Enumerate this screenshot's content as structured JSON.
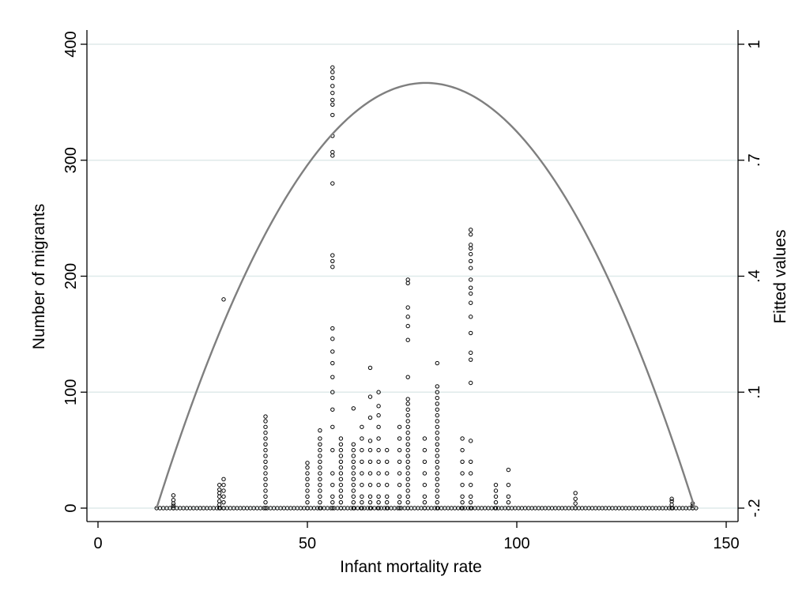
{
  "chart_data": {
    "type": "scatter",
    "title": "",
    "xlabel": "Infant mortality rate",
    "ylabel": "Number of migrants",
    "y2label": "Fitted values",
    "xlim": [
      0,
      150
    ],
    "ylim": [
      0,
      400
    ],
    "y2lim": [
      -0.2,
      1
    ],
    "x_ticks": [
      "0",
      "50",
      "100",
      "150"
    ],
    "y_ticks": [
      "0",
      "100",
      "200",
      "300",
      "400"
    ],
    "y2_ticks": [
      "-.2",
      ".1",
      ".4",
      ".7",
      "1"
    ],
    "grid": "horizontal",
    "colors": {
      "points": "#000000",
      "fit_line": "#7f7f7f",
      "grid": "#dfeaea"
    },
    "series": [
      {
        "kind": "points",
        "columns": [
          {
            "x": 18,
            "y": [
              0,
              2,
              4,
              7,
              11
            ]
          },
          {
            "x": 29,
            "y": [
              0,
              3,
              6,
              10,
              13,
              16,
              20
            ]
          },
          {
            "x": 30,
            "y": [
              0,
              5,
              10,
              15,
              20,
              25
            ]
          },
          {
            "x": 40,
            "y": [
              0,
              5,
              10,
              15,
              20,
              25,
              30,
              35,
              40,
              45,
              50,
              55,
              60,
              65,
              70,
              75,
              79
            ]
          },
          {
            "x": 50,
            "y": [
              0,
              5,
              10,
              15,
              20,
              25,
              30,
              35,
              39
            ]
          },
          {
            "x": 53,
            "y": [
              0,
              5,
              10,
              15,
              20,
              25,
              30,
              35,
              40,
              45,
              50,
              55,
              60,
              67
            ]
          },
          {
            "x": 56,
            "y": [
              0,
              5,
              10,
              20,
              30,
              50,
              70,
              85,
              100,
              113,
              125,
              135,
              146,
              155,
              208,
              213,
              218,
              280,
              304,
              307,
              321,
              339,
              348,
              352,
              358,
              364,
              371,
              376,
              380
            ]
          },
          {
            "x": 58,
            "y": [
              0,
              5,
              10,
              15,
              20,
              25,
              30,
              35,
              40,
              45,
              50,
              55,
              60
            ]
          },
          {
            "x": 61,
            "y": [
              0,
              5,
              10,
              15,
              20,
              25,
              30,
              35,
              40,
              45,
              50,
              55,
              86
            ]
          },
          {
            "x": 63,
            "y": [
              0,
              5,
              10,
              20,
              30,
              40,
              50,
              60,
              70
            ]
          },
          {
            "x": 65,
            "y": [
              0,
              5,
              10,
              20,
              30,
              40,
              50,
              58,
              78,
              96,
              121
            ]
          },
          {
            "x": 67,
            "y": [
              0,
              5,
              10,
              20,
              30,
              40,
              50,
              60,
              70,
              80,
              88,
              100
            ]
          },
          {
            "x": 69,
            "y": [
              0,
              5,
              10,
              20,
              30,
              40,
              50
            ]
          },
          {
            "x": 72,
            "y": [
              0,
              5,
              10,
              20,
              30,
              40,
              50,
              60,
              70
            ]
          },
          {
            "x": 74,
            "y": [
              0,
              5,
              10,
              15,
              20,
              25,
              30,
              35,
              40,
              45,
              50,
              55,
              60,
              65,
              70,
              75,
              80,
              85,
              90,
              94,
              113,
              145,
              157,
              165,
              173,
              194,
              197
            ]
          },
          {
            "x": 78,
            "y": [
              0,
              5,
              10,
              20,
              30,
              40,
              50,
              60
            ]
          },
          {
            "x": 81,
            "y": [
              0,
              5,
              10,
              15,
              20,
              25,
              30,
              35,
              40,
              45,
              50,
              55,
              60,
              65,
              70,
              75,
              80,
              85,
              90,
              95,
              100,
              105,
              125
            ]
          },
          {
            "x": 87,
            "y": [
              0,
              5,
              10,
              20,
              30,
              40,
              50,
              60
            ]
          },
          {
            "x": 89,
            "y": [
              0,
              5,
              10,
              20,
              30,
              40,
              58,
              108,
              128,
              134,
              151,
              165,
              177,
              185,
              190,
              197,
              207,
              213,
              219,
              224,
              227,
              236,
              240
            ]
          },
          {
            "x": 95,
            "y": [
              0,
              5,
              10,
              15,
              20
            ]
          },
          {
            "x": 98,
            "y": [
              0,
              5,
              10,
              20,
              33
            ]
          },
          {
            "x": 114,
            "y": [
              0,
              4,
              8,
              13
            ]
          },
          {
            "x": 137,
            "y": [
              0,
              3,
              6,
              8
            ]
          },
          {
            "x": 142,
            "y": [
              0,
              2,
              4
            ]
          }
        ],
        "baseline_x_range": [
          14,
          143
        ]
      },
      {
        "kind": "fitted_quadratic",
        "x_range": [
          14,
          142.5
        ],
        "y_peak": 0.9,
        "x_peak": 78.25,
        "y_at_ends": -0.2
      },
      {
        "kind": "outlier_point",
        "x": 30,
        "y": 180
      }
    ]
  }
}
